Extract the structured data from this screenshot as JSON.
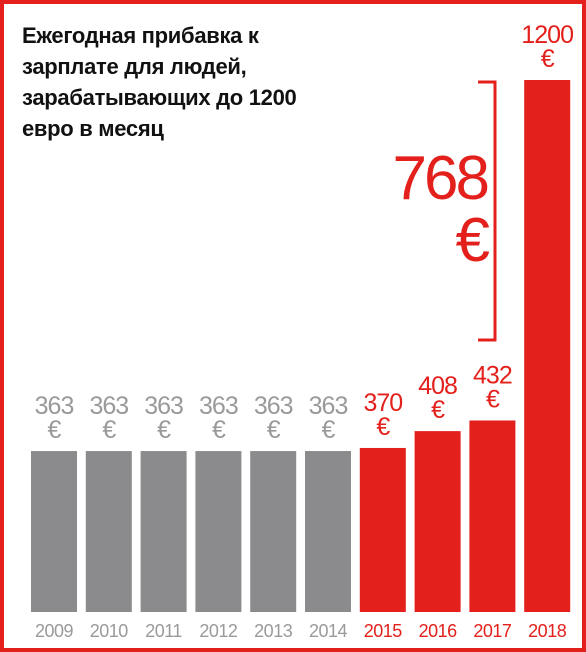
{
  "chart_data": {
    "type": "bar",
    "title": "Ежегодная прибавка к\nзарплате для людей,\nзарабатывающих до 1200\nевро в месяц",
    "categories": [
      "2009",
      "2010",
      "2011",
      "2012",
      "2013",
      "2014",
      "2015",
      "2016",
      "2017",
      "2018"
    ],
    "values": [
      363,
      363,
      363,
      363,
      363,
      363,
      370,
      408,
      432,
      1200
    ],
    "value_labels": [
      "363 €",
      "363 €",
      "363 €",
      "363 €",
      "363 €",
      "363 €",
      "370 €",
      "408 €",
      "432 €",
      "1200 €"
    ],
    "colors": [
      "#8b8b8d",
      "#8b8b8d",
      "#8b8b8d",
      "#8b8b8d",
      "#8b8b8d",
      "#8b8b8d",
      "#e3201b",
      "#e3201b",
      "#e3201b",
      "#e3201b"
    ],
    "annotation": "768 €"
  }
}
